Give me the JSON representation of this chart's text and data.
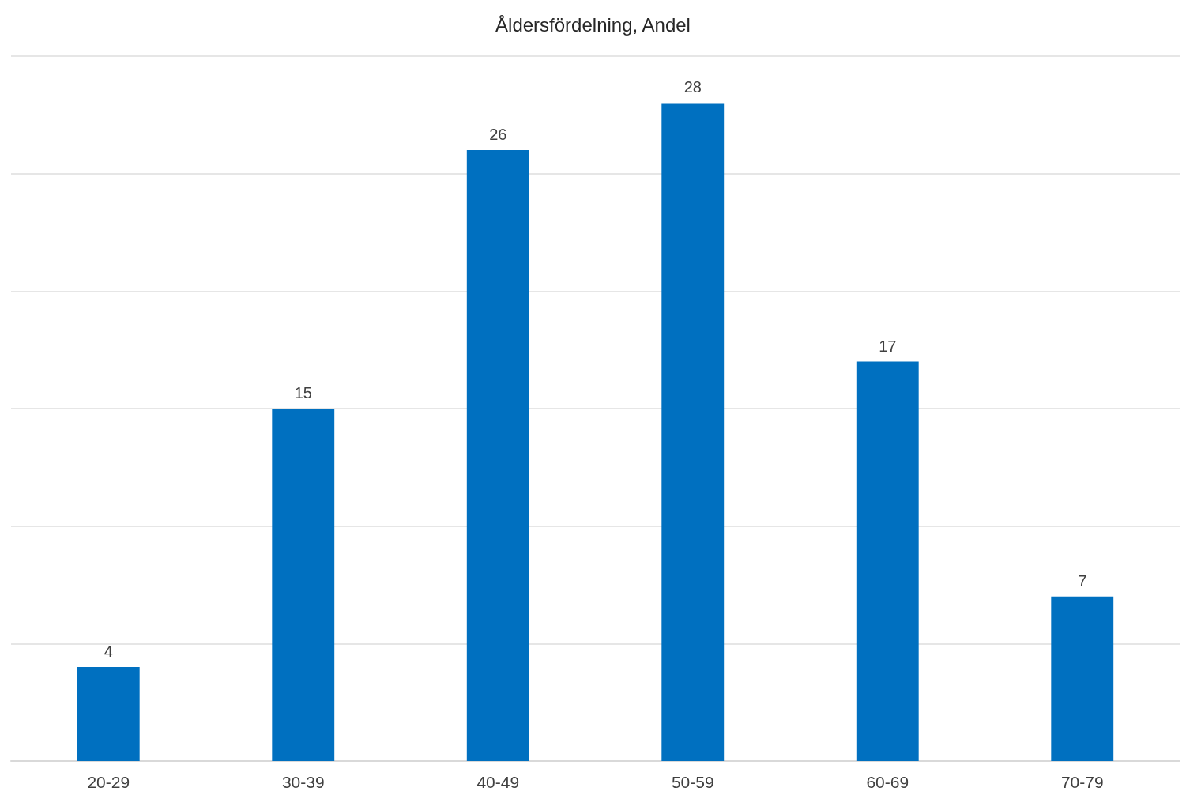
{
  "chart_data": {
    "type": "bar",
    "title": "Åldersfördelning, Andel",
    "categories": [
      "20-29",
      "30-39",
      "40-49",
      "50-59",
      "60-69",
      "70-79"
    ],
    "values": [
      4,
      15,
      26,
      28,
      17,
      7
    ],
    "color": "#0070c0",
    "ylim": [
      0,
      30
    ],
    "yticks": [
      0,
      5,
      10,
      15,
      20,
      25,
      30
    ],
    "grid": "y",
    "data_labels": true,
    "tick_labels": "x"
  }
}
